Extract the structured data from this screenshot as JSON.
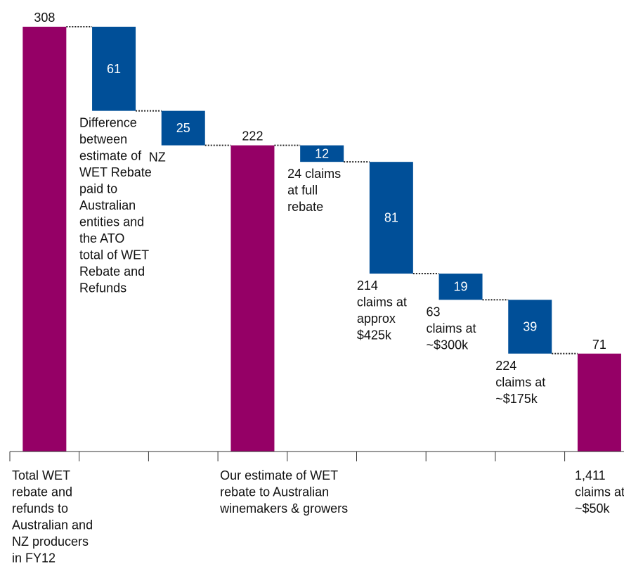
{
  "chart_data": {
    "type": "waterfall",
    "colors": {
      "total": "#950066",
      "step": "#004f98",
      "connector": "#222222",
      "axis": "#333333"
    },
    "ylim": [
      0,
      308
    ],
    "bars": [
      {
        "kind": "total",
        "value": 308,
        "label": "308",
        "xlabel": [
          "Total WET",
          "rebate and",
          "refunds to",
          "Australian and",
          "NZ producers",
          "in FY12"
        ]
      },
      {
        "kind": "step",
        "value": -61,
        "label": "61",
        "annotation": [
          "Difference",
          "between",
          "estimate of",
          "WET Rebate",
          "paid to",
          "Australian",
          "entities and",
          "the ATO",
          "total of WET",
          "Rebate and",
          "Refunds"
        ]
      },
      {
        "kind": "step",
        "value": -25,
        "label": "25",
        "annotation": [
          "NZ"
        ]
      },
      {
        "kind": "total",
        "value": 222,
        "label": "222",
        "xlabel": [
          "Our estimate of WET",
          "rebate to Australian",
          "winemakers & growers"
        ]
      },
      {
        "kind": "step",
        "value": -12,
        "label": "12",
        "annotation": [
          "24 claims",
          "at full",
          "rebate"
        ]
      },
      {
        "kind": "step",
        "value": -81,
        "label": "81",
        "annotation": [
          "214",
          "claims at",
          "approx",
          "$425k"
        ]
      },
      {
        "kind": "step",
        "value": -19,
        "label": "19",
        "annotation": [
          "63",
          "claims at",
          "~$300k"
        ]
      },
      {
        "kind": "step",
        "value": -39,
        "label": "39",
        "annotation": [
          "224",
          "claims at",
          "~$175k"
        ]
      },
      {
        "kind": "total",
        "value": 71,
        "label": "71",
        "xlabel": [
          "1,411",
          "claims at",
          "~$50k"
        ]
      }
    ]
  }
}
